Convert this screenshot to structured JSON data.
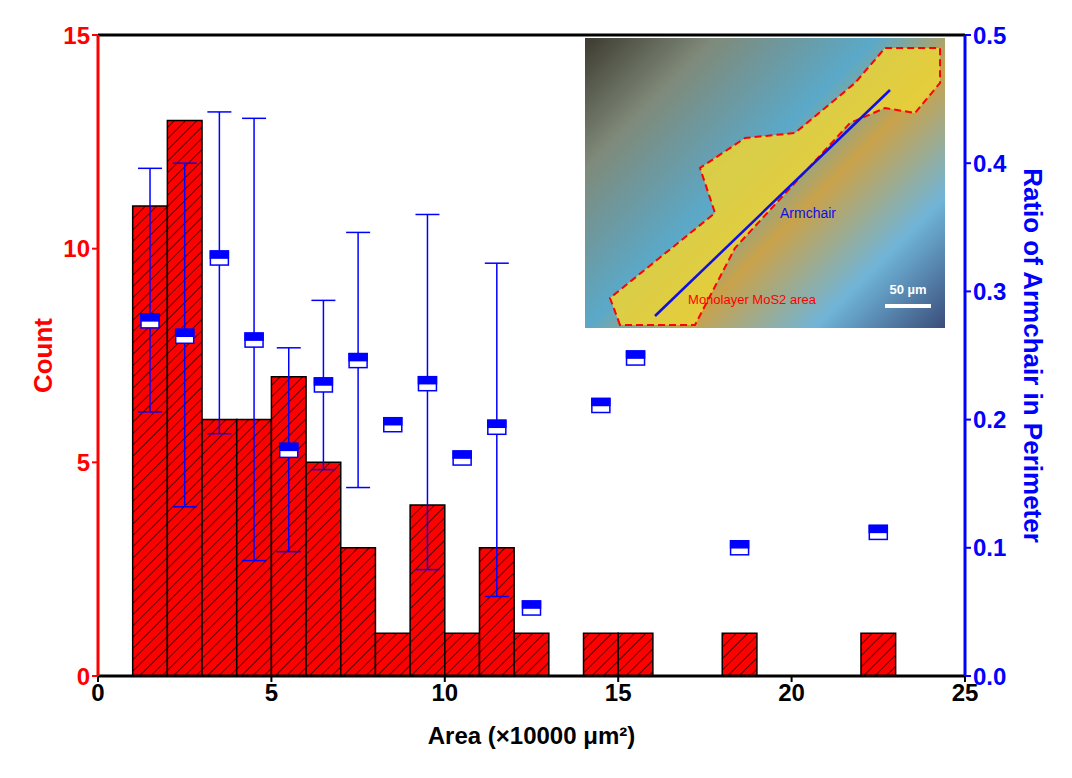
{
  "chart_data": {
    "type": "histogram",
    "xlabel": "Area (×10000  μm²)",
    "ylabel": "Count",
    "y2label": "Ratio of Armchair in Perimeter",
    "bins": [
      1,
      2,
      3,
      4,
      5,
      6,
      7,
      8,
      9,
      10,
      11,
      12,
      13,
      14,
      15,
      16,
      17,
      18,
      19,
      20,
      21,
      22,
      23
    ],
    "values": [
      11,
      13,
      6,
      6,
      7,
      5,
      3,
      1,
      4,
      1,
      3,
      1,
      0,
      1,
      1,
      0,
      0,
      1,
      0,
      0,
      0,
      1
    ],
    "color": "#ff0000",
    "xlim": [
      0,
      25
    ],
    "xticks": [
      0,
      5,
      10,
      15,
      20,
      25
    ],
    "ylim": [
      0,
      15
    ],
    "yticks": [
      0,
      5,
      10,
      15
    ],
    "y2lim": [
      0,
      0.5
    ],
    "y2ticks": [
      {
        "value": 0,
        "label": "0.0"
      },
      0.1,
      0.2,
      0.3,
      0.4,
      0.5
    ],
    "series": [
      {
        "type": "scatter",
        "axis": "y2",
        "color": "#0000ff",
        "marker": "square",
        "x": [
          1.5,
          2.5,
          3.5,
          4.5,
          5.5,
          6.5,
          7.5,
          8.5,
          9.5,
          10.5,
          11.5,
          12.5,
          14.5,
          15.5,
          18.5,
          22.5
        ],
        "values": [
          0.277,
          0.265,
          0.326,
          0.262,
          0.176,
          0.227,
          0.246,
          0.196,
          0.228,
          0.17,
          0.194,
          0.053,
          0.211,
          0.248,
          0.1,
          0.112
        ],
        "error_low": [
          0.206,
          0.132,
          0.189,
          0.09,
          0.097,
          0.161,
          0.147,
          null,
          0.083,
          null,
          0.062,
          null,
          null,
          null,
          null,
          null
        ],
        "error_high": [
          0.396,
          0.4,
          0.44,
          0.435,
          0.256,
          0.293,
          0.346,
          null,
          0.36,
          null,
          0.322,
          null,
          null,
          null,
          null,
          null
        ]
      }
    ],
    "annotations": [
      "Armchair",
      "Monolayer MoS2 area",
      "50 µm"
    ]
  }
}
